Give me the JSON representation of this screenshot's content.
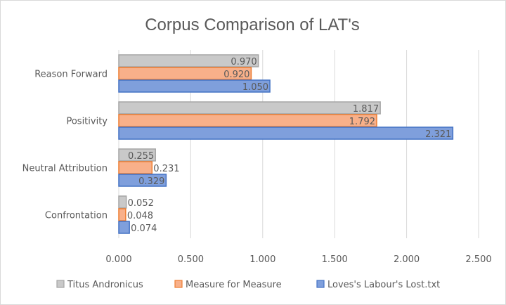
{
  "chart_data": {
    "type": "bar",
    "orientation": "horizontal",
    "title": "Corpus Comparison of LAT's",
    "categories": [
      "Reason Forward",
      "Positivity",
      "Neutral Attribution",
      "Confrontation"
    ],
    "series": [
      {
        "name": "Titus Andronicus",
        "values": [
          0.97,
          1.817,
          0.255,
          0.052
        ],
        "labels": [
          "0.970",
          "1.817",
          "0.255",
          "0.052"
        ],
        "color": "#c9c9c9",
        "stroke": "#a5a5a5"
      },
      {
        "name": "Measure for Measure",
        "values": [
          0.92,
          1.792,
          0.231,
          0.048
        ],
        "labels": [
          "0.920",
          "1.792",
          "0.231",
          "0.048"
        ],
        "color": "#f8b08a",
        "stroke": "#ed7d31"
      },
      {
        "name": "Loves's Labour's Lost.txt",
        "values": [
          1.05,
          2.321,
          0.329,
          0.074
        ],
        "labels": [
          "1.050",
          "2.321",
          "0.329",
          "0.074"
        ],
        "color": "#7f9fdc",
        "stroke": "#4472c4"
      }
    ],
    "xlim": [
      0,
      2.5
    ],
    "xticks": [
      "0.000",
      "0.500",
      "1.000",
      "1.500",
      "2.000",
      "2.500"
    ],
    "xtick_values": [
      0,
      0.5,
      1.0,
      1.5,
      2.0,
      2.5
    ],
    "grid": true,
    "legend_position": "bottom"
  }
}
